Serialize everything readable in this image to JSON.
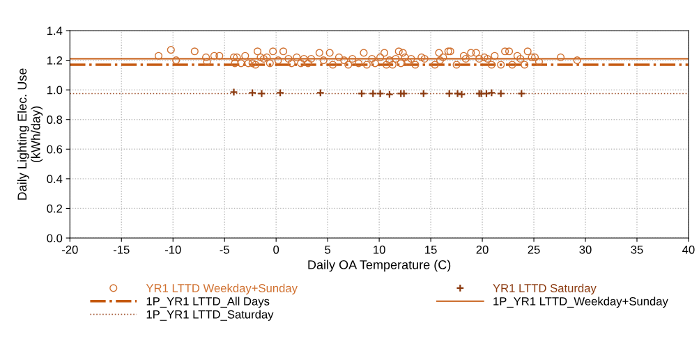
{
  "chart_data": {
    "type": "scatter",
    "xlabel": "Daily OA Temperature (C)",
    "ylabel": "Daily Lighting Elec. Use\n(kWh/day)",
    "xlim": [
      -20,
      40
    ],
    "xticks": [
      -20,
      -15,
      -10,
      -5,
      0,
      5,
      10,
      15,
      20,
      25,
      30,
      35,
      40
    ],
    "ylim": [
      0,
      1.4
    ],
    "yticks": [
      {
        "value": 0,
        "label": "0.0"
      },
      {
        "value": 0.2,
        "label": "0.2"
      },
      {
        "value": 0.4,
        "label": "0.4"
      },
      {
        "value": 0.6,
        "label": "0.6"
      },
      {
        "value": 0.8,
        "label": "0.8"
      },
      {
        "value": 1.0,
        "label": "1.0"
      },
      {
        "value": 1.2,
        "label": "1.2"
      },
      {
        "value": 1.4,
        "label": "1.4"
      }
    ],
    "grid": true,
    "legend": "bottom",
    "series": [
      {
        "name": "YR1 LTTD Weekday+Sunday",
        "type": "scatter",
        "marker": "circle",
        "color": "#d0702f",
        "x": [
          -11.4,
          -10.2,
          -9.7,
          -7.9,
          -6.8,
          -6.7,
          -6.0,
          -5.5,
          -4.1,
          -4.0,
          -3.8,
          -3.4,
          -3.0,
          -2.7,
          -2.3,
          -2.0,
          -1.8,
          -1.5,
          -1.2,
          -0.9,
          -0.6,
          -0.3,
          0.2,
          0.7,
          1.2,
          1.5,
          2.0,
          2.4,
          2.7,
          3.1,
          3.4,
          4.2,
          4.6,
          5.2,
          5.5,
          6.1,
          6.6,
          7.0,
          7.4,
          8.0,
          8.5,
          8.8,
          9.3,
          9.6,
          10.1,
          10.5,
          10.7,
          11.0,
          11.3,
          11.6,
          11.9,
          12.1,
          12.3,
          12.5,
          12.8,
          13.1,
          13.5,
          14.1,
          14.4,
          15.4,
          15.8,
          15.9,
          16.2,
          16.7,
          16.9,
          17.5,
          18.2,
          18.4,
          18.9,
          19.4,
          19.7,
          20.2,
          20.5,
          20.9,
          21.2,
          21.8,
          22.2,
          22.6,
          22.9,
          23.4,
          23.7,
          24.1,
          24.4,
          24.8,
          25.1,
          25.5,
          27.6,
          29.2
        ],
        "values": [
          1.23,
          1.27,
          1.2,
          1.26,
          1.22,
          1.19,
          1.23,
          1.23,
          1.22,
          1.18,
          1.22,
          1.18,
          1.23,
          1.18,
          1.18,
          1.17,
          1.26,
          1.22,
          1.21,
          1.22,
          1.18,
          1.26,
          1.2,
          1.26,
          1.21,
          1.18,
          1.22,
          1.18,
          1.21,
          1.18,
          1.21,
          1.25,
          1.2,
          1.25,
          1.17,
          1.22,
          1.2,
          1.17,
          1.21,
          1.18,
          1.25,
          1.17,
          1.21,
          1.18,
          1.22,
          1.25,
          1.17,
          1.2,
          1.17,
          1.21,
          1.26,
          1.18,
          1.25,
          1.22,
          1.19,
          1.21,
          1.17,
          1.22,
          1.21,
          1.17,
          1.25,
          1.2,
          1.22,
          1.26,
          1.26,
          1.17,
          1.23,
          1.21,
          1.25,
          1.25,
          1.21,
          1.22,
          1.21,
          1.17,
          1.23,
          1.17,
          1.26,
          1.26,
          1.17,
          1.23,
          1.21,
          1.17,
          1.26,
          1.22,
          1.22,
          1.19,
          1.22,
          1.2
        ]
      },
      {
        "name": "1P_YR1 LTTD_All Days",
        "type": "line",
        "line_style": "dashdot",
        "color": "#c55a11",
        "x": [
          -20,
          40
        ],
        "values": [
          1.17,
          1.17
        ]
      },
      {
        "name": "1P_YR1 LTTD_Saturday",
        "type": "line",
        "line_style": "dotted",
        "color": "#a0522d",
        "x": [
          -20,
          40
        ],
        "values": [
          0.975,
          0.975
        ]
      },
      {
        "name": "YR1 LTTD Saturday",
        "type": "scatter",
        "marker": "cross",
        "color": "#8b3a0f",
        "x": [
          -4.1,
          -2.3,
          -1.4,
          0.4,
          4.3,
          8.3,
          9.4,
          10.1,
          11.0,
          12.1,
          12.4,
          14.3,
          16.8,
          17.6,
          18.0,
          19.7,
          19.9,
          20.4,
          20.9,
          21.8,
          23.8
        ],
        "values": [
          0.985,
          0.98,
          0.975,
          0.98,
          0.98,
          0.975,
          0.975,
          0.975,
          0.97,
          0.975,
          0.975,
          0.975,
          0.975,
          0.975,
          0.97,
          0.975,
          0.975,
          0.975,
          0.98,
          0.975,
          0.975
        ]
      },
      {
        "name": "1P_YR1 LTTD_Weekday+Sunday",
        "type": "line",
        "line_style": "solid",
        "color": "#c55a11",
        "x": [
          -20,
          40
        ],
        "values": [
          1.21,
          1.21
        ]
      }
    ]
  }
}
